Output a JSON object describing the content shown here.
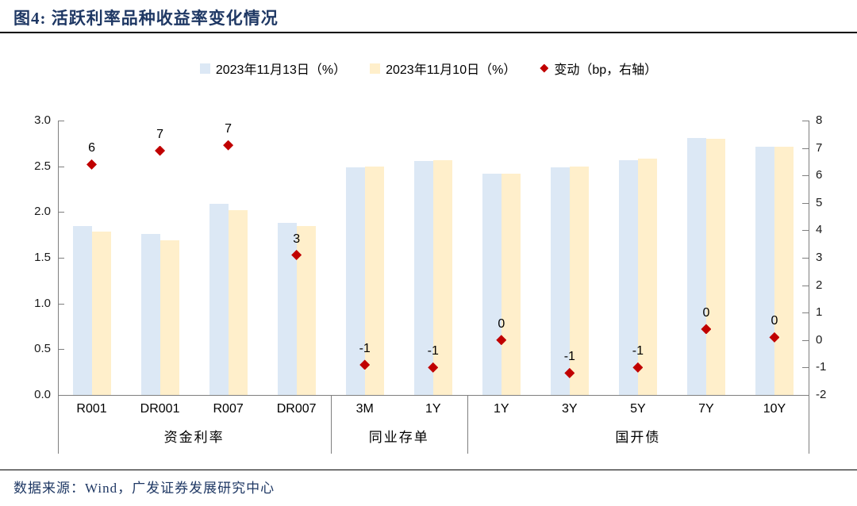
{
  "header": {
    "title": "图4:  活跃利率品种收益率变化情况"
  },
  "footer": {
    "source": "数据来源：Wind，广发证券发展研究中心"
  },
  "colors": {
    "title_navy": "#1F3864",
    "bar_nov13": "#DCE8F5",
    "bar_nov10": "#FFEFCB",
    "change_red": "#C00000",
    "axis_gray": "#7F7F7F"
  },
  "chart_data": {
    "type": "bar",
    "title": "活跃利率品种收益率变化情况",
    "categories": [
      "R001",
      "DR001",
      "R007",
      "DR007",
      "3M",
      "1Y",
      "1Y",
      "3Y",
      "5Y",
      "7Y",
      "10Y"
    ],
    "category_groups": [
      {
        "label": "资金利率",
        "span": [
          0,
          3
        ]
      },
      {
        "label": "同业存单",
        "span": [
          4,
          5
        ]
      },
      {
        "label": "国开债",
        "span": [
          6,
          10
        ]
      }
    ],
    "series": [
      {
        "name": "2023年11月13日（%）",
        "type": "bar",
        "axis": "left",
        "color": "#DCE8F5",
        "values": [
          1.85,
          1.76,
          2.09,
          1.88,
          2.49,
          2.56,
          2.42,
          2.49,
          2.57,
          2.81,
          2.71
        ]
      },
      {
        "name": "2023年11月10日（%）",
        "type": "bar",
        "axis": "left",
        "color": "#FFEFCB",
        "values": [
          1.79,
          1.69,
          2.02,
          1.85,
          2.5,
          2.57,
          2.42,
          2.5,
          2.58,
          2.8,
          2.71
        ]
      },
      {
        "name": "变动（bp，右轴）",
        "type": "scatter-diamond",
        "axis": "right",
        "color": "#C00000",
        "values": [
          6.4,
          6.9,
          7.1,
          3.1,
          -0.9,
          -1.0,
          0.0,
          -1.2,
          -1.0,
          0.4,
          0.1
        ],
        "labels": [
          "6",
          "7",
          "7",
          "3",
          "-1",
          "-1",
          "0",
          "-1",
          "-1",
          "0",
          "0"
        ]
      }
    ],
    "left_axis": {
      "min": 0,
      "max": 3,
      "step": 0.5,
      "ticks": [
        "0.0",
        "0.5",
        "1.0",
        "1.5",
        "2.0",
        "2.5",
        "3.0"
      ]
    },
    "right_axis": {
      "min": -2,
      "max": 8,
      "step": 1,
      "ticks": [
        "-2",
        "-1",
        "0",
        "1",
        "2",
        "3",
        "4",
        "5",
        "6",
        "7",
        "8"
      ]
    },
    "legend_position": "top-center",
    "grid": false
  }
}
